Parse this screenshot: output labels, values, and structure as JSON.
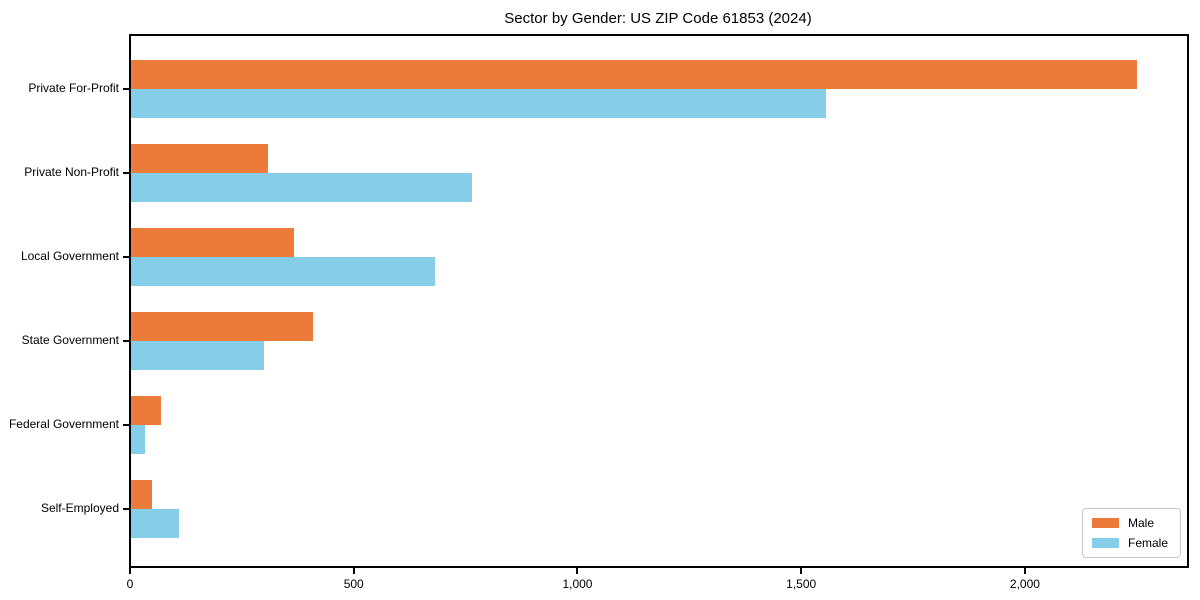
{
  "chart_data": {
    "type": "bar",
    "orientation": "horizontal",
    "title": "Sector by Gender: US ZIP Code 61853 (2024)",
    "categories": [
      "Private For-Profit",
      "Private Non-Profit",
      "Local Government",
      "State Government",
      "Federal Government",
      "Self-Employed"
    ],
    "series": [
      {
        "name": "Male",
        "color": "#ec7a3a",
        "values": [
          2248,
          306,
          365,
          407,
          67,
          48
        ]
      },
      {
        "name": "Female",
        "color": "#86cde8",
        "values": [
          1554,
          761,
          679,
          297,
          31,
          108
        ]
      }
    ],
    "xlabel": "",
    "ylabel": "",
    "xlim": [
      0,
      2360
    ],
    "xticks": [
      0,
      500,
      1000,
      1500,
      2000
    ],
    "xtick_labels": [
      "0",
      "500",
      "1,000",
      "1,500",
      "2,000"
    ],
    "grid": false,
    "legend": {
      "position": "lower right"
    },
    "colors": {
      "axis": "#000000",
      "legend_border": "#c9c9c9",
      "background": "#ffffff"
    }
  }
}
